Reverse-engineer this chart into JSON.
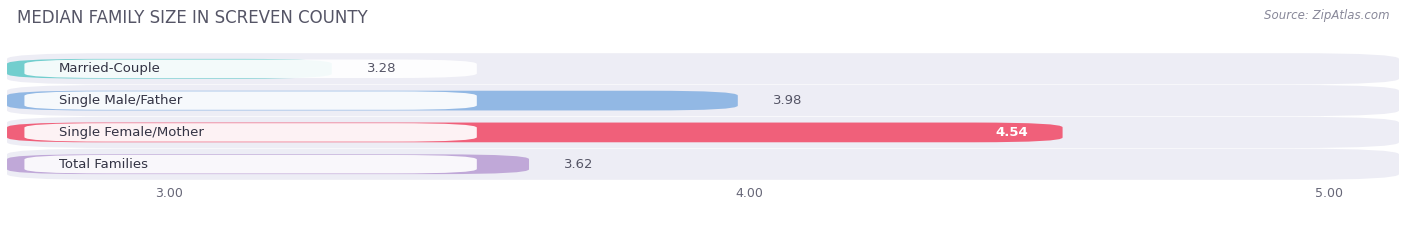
{
  "title": "MEDIAN FAMILY SIZE IN SCREVEN COUNTY",
  "source": "Source: ZipAtlas.com",
  "categories": [
    "Married-Couple",
    "Single Male/Father",
    "Single Female/Mother",
    "Total Families"
  ],
  "values": [
    3.28,
    3.98,
    4.54,
    3.62
  ],
  "bar_colors": [
    "#72cece",
    "#92b8e4",
    "#f0607a",
    "#c0a8d8"
  ],
  "xlim_min": 2.72,
  "xlim_max": 5.12,
  "xticks": [
    3.0,
    4.0,
    5.0
  ],
  "xtick_labels": [
    "3.00",
    "4.00",
    "5.00"
  ],
  "title_fontsize": 12,
  "source_fontsize": 8.5,
  "label_fontsize": 9.5,
  "value_fontsize": 9.5,
  "tick_fontsize": 9,
  "bar_height": 0.62,
  "background_color": "#ffffff",
  "bar_bg_color": "#ededf5",
  "row_bg_color": "#f5f5fa",
  "grid_color": "#ffffff",
  "title_color": "#555566",
  "label_color": "#333344",
  "value_color_dark": "#555566",
  "value_color_light": "#ffffff"
}
